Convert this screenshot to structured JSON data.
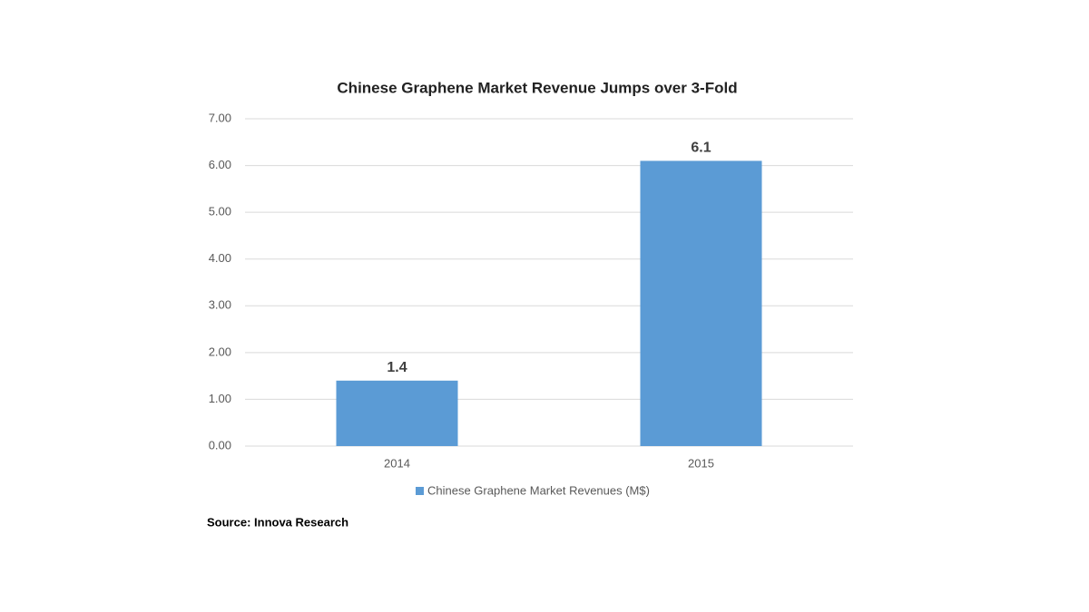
{
  "chart_data": {
    "type": "bar",
    "title": "Chinese Graphene Market Revenue Jumps over 3-Fold",
    "categories": [
      "2014",
      "2015"
    ],
    "series": [
      {
        "name": "Chinese Graphene Market Revenues (M$)",
        "color": "#5b9bd5",
        "values": [
          1.4,
          6.1
        ]
      }
    ],
    "ylim": [
      0,
      7
    ],
    "yticks": [
      {
        "value": 0,
        "label": "0.00"
      },
      {
        "value": 1,
        "label": "1.00"
      },
      {
        "value": 2,
        "label": "2.00"
      },
      {
        "value": 3,
        "label": "3.00"
      },
      {
        "value": 4,
        "label": "4.00"
      },
      {
        "value": 5,
        "label": "5.00"
      },
      {
        "value": 6,
        "label": "6.00"
      },
      {
        "value": 7,
        "label": "7.00"
      }
    ],
    "grid": true,
    "legend": "bottom",
    "source": "Source: Innova Research"
  }
}
